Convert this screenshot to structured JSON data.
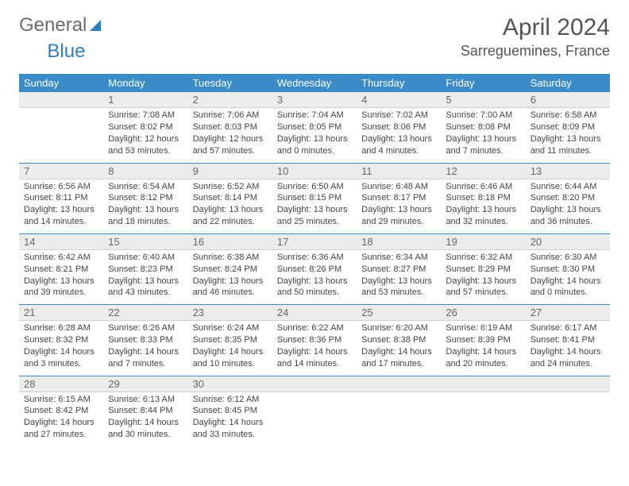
{
  "brand": {
    "part1": "General",
    "part2": "Blue"
  },
  "title": "April 2024",
  "location": "Sarreguemines, France",
  "colors": {
    "header_bg": "#3b8bc8",
    "header_fg": "#ffffff",
    "daynum_bg": "#ececec",
    "row_divider": "#3b8bc8",
    "text": "#444444",
    "brand_gray": "#6b6b6b",
    "brand_blue": "#2d7fc0"
  },
  "weekdays": [
    "Sunday",
    "Monday",
    "Tuesday",
    "Wednesday",
    "Thursday",
    "Friday",
    "Saturday"
  ],
  "weeks": [
    [
      {
        "n": "",
        "empty": true
      },
      {
        "n": "1",
        "sunrise": "Sunrise: 7:08 AM",
        "sunset": "Sunset: 8:02 PM",
        "daylight1": "Daylight: 12 hours",
        "daylight2": "and 53 minutes."
      },
      {
        "n": "2",
        "sunrise": "Sunrise: 7:06 AM",
        "sunset": "Sunset: 8:03 PM",
        "daylight1": "Daylight: 12 hours",
        "daylight2": "and 57 minutes."
      },
      {
        "n": "3",
        "sunrise": "Sunrise: 7:04 AM",
        "sunset": "Sunset: 8:05 PM",
        "daylight1": "Daylight: 13 hours",
        "daylight2": "and 0 minutes."
      },
      {
        "n": "4",
        "sunrise": "Sunrise: 7:02 AM",
        "sunset": "Sunset: 8:06 PM",
        "daylight1": "Daylight: 13 hours",
        "daylight2": "and 4 minutes."
      },
      {
        "n": "5",
        "sunrise": "Sunrise: 7:00 AM",
        "sunset": "Sunset: 8:08 PM",
        "daylight1": "Daylight: 13 hours",
        "daylight2": "and 7 minutes."
      },
      {
        "n": "6",
        "sunrise": "Sunrise: 6:58 AM",
        "sunset": "Sunset: 8:09 PM",
        "daylight1": "Daylight: 13 hours",
        "daylight2": "and 11 minutes."
      }
    ],
    [
      {
        "n": "7",
        "sunrise": "Sunrise: 6:56 AM",
        "sunset": "Sunset: 8:11 PM",
        "daylight1": "Daylight: 13 hours",
        "daylight2": "and 14 minutes."
      },
      {
        "n": "8",
        "sunrise": "Sunrise: 6:54 AM",
        "sunset": "Sunset: 8:12 PM",
        "daylight1": "Daylight: 13 hours",
        "daylight2": "and 18 minutes."
      },
      {
        "n": "9",
        "sunrise": "Sunrise: 6:52 AM",
        "sunset": "Sunset: 8:14 PM",
        "daylight1": "Daylight: 13 hours",
        "daylight2": "and 22 minutes."
      },
      {
        "n": "10",
        "sunrise": "Sunrise: 6:50 AM",
        "sunset": "Sunset: 8:15 PM",
        "daylight1": "Daylight: 13 hours",
        "daylight2": "and 25 minutes."
      },
      {
        "n": "11",
        "sunrise": "Sunrise: 6:48 AM",
        "sunset": "Sunset: 8:17 PM",
        "daylight1": "Daylight: 13 hours",
        "daylight2": "and 29 minutes."
      },
      {
        "n": "12",
        "sunrise": "Sunrise: 6:46 AM",
        "sunset": "Sunset: 8:18 PM",
        "daylight1": "Daylight: 13 hours",
        "daylight2": "and 32 minutes."
      },
      {
        "n": "13",
        "sunrise": "Sunrise: 6:44 AM",
        "sunset": "Sunset: 8:20 PM",
        "daylight1": "Daylight: 13 hours",
        "daylight2": "and 36 minutes."
      }
    ],
    [
      {
        "n": "14",
        "sunrise": "Sunrise: 6:42 AM",
        "sunset": "Sunset: 8:21 PM",
        "daylight1": "Daylight: 13 hours",
        "daylight2": "and 39 minutes."
      },
      {
        "n": "15",
        "sunrise": "Sunrise: 6:40 AM",
        "sunset": "Sunset: 8:23 PM",
        "daylight1": "Daylight: 13 hours",
        "daylight2": "and 43 minutes."
      },
      {
        "n": "16",
        "sunrise": "Sunrise: 6:38 AM",
        "sunset": "Sunset: 8:24 PM",
        "daylight1": "Daylight: 13 hours",
        "daylight2": "and 46 minutes."
      },
      {
        "n": "17",
        "sunrise": "Sunrise: 6:36 AM",
        "sunset": "Sunset: 8:26 PM",
        "daylight1": "Daylight: 13 hours",
        "daylight2": "and 50 minutes."
      },
      {
        "n": "18",
        "sunrise": "Sunrise: 6:34 AM",
        "sunset": "Sunset: 8:27 PM",
        "daylight1": "Daylight: 13 hours",
        "daylight2": "and 53 minutes."
      },
      {
        "n": "19",
        "sunrise": "Sunrise: 6:32 AM",
        "sunset": "Sunset: 8:29 PM",
        "daylight1": "Daylight: 13 hours",
        "daylight2": "and 57 minutes."
      },
      {
        "n": "20",
        "sunrise": "Sunrise: 6:30 AM",
        "sunset": "Sunset: 8:30 PM",
        "daylight1": "Daylight: 14 hours",
        "daylight2": "and 0 minutes."
      }
    ],
    [
      {
        "n": "21",
        "sunrise": "Sunrise: 6:28 AM",
        "sunset": "Sunset: 8:32 PM",
        "daylight1": "Daylight: 14 hours",
        "daylight2": "and 3 minutes."
      },
      {
        "n": "22",
        "sunrise": "Sunrise: 6:26 AM",
        "sunset": "Sunset: 8:33 PM",
        "daylight1": "Daylight: 14 hours",
        "daylight2": "and 7 minutes."
      },
      {
        "n": "23",
        "sunrise": "Sunrise: 6:24 AM",
        "sunset": "Sunset: 8:35 PM",
        "daylight1": "Daylight: 14 hours",
        "daylight2": "and 10 minutes."
      },
      {
        "n": "24",
        "sunrise": "Sunrise: 6:22 AM",
        "sunset": "Sunset: 8:36 PM",
        "daylight1": "Daylight: 14 hours",
        "daylight2": "and 14 minutes."
      },
      {
        "n": "25",
        "sunrise": "Sunrise: 6:20 AM",
        "sunset": "Sunset: 8:38 PM",
        "daylight1": "Daylight: 14 hours",
        "daylight2": "and 17 minutes."
      },
      {
        "n": "26",
        "sunrise": "Sunrise: 6:19 AM",
        "sunset": "Sunset: 8:39 PM",
        "daylight1": "Daylight: 14 hours",
        "daylight2": "and 20 minutes."
      },
      {
        "n": "27",
        "sunrise": "Sunrise: 6:17 AM",
        "sunset": "Sunset: 8:41 PM",
        "daylight1": "Daylight: 14 hours",
        "daylight2": "and 24 minutes."
      }
    ],
    [
      {
        "n": "28",
        "sunrise": "Sunrise: 6:15 AM",
        "sunset": "Sunset: 8:42 PM",
        "daylight1": "Daylight: 14 hours",
        "daylight2": "and 27 minutes."
      },
      {
        "n": "29",
        "sunrise": "Sunrise: 6:13 AM",
        "sunset": "Sunset: 8:44 PM",
        "daylight1": "Daylight: 14 hours",
        "daylight2": "and 30 minutes."
      },
      {
        "n": "30",
        "sunrise": "Sunrise: 6:12 AM",
        "sunset": "Sunset: 8:45 PM",
        "daylight1": "Daylight: 14 hours",
        "daylight2": "and 33 minutes."
      },
      {
        "n": "",
        "empty": true
      },
      {
        "n": "",
        "empty": true
      },
      {
        "n": "",
        "empty": true
      },
      {
        "n": "",
        "empty": true
      }
    ]
  ]
}
